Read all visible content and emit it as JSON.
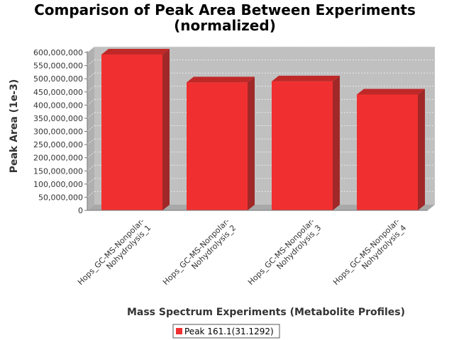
{
  "chart_data": {
    "type": "bar",
    "title": "Comparison of Peak Area Between Experiments",
    "subtitle": "(normalized)",
    "xlabel": "Mass Spectrum Experiments (Metabolite Profiles)",
    "ylabel": "Peak Area (1e-3)",
    "categories": [
      "Hops_GC-MS-Nonpolar-Nohydrolysis_1",
      "Hops_GC-MS-Nonpolar-Nohydrolysis_2",
      "Hops_GC-MS-Nonpolar-Nohydrolysis_3",
      "Hops_GC-MS-Nonpolar-Nohydrolysis_4"
    ],
    "category_lines": [
      [
        "Hops_GC-MS-Nonpolar-",
        "Nohydrolysis_1"
      ],
      [
        "Hops_GC-MS-Nonpolar-",
        "Nohydrolysis_2"
      ],
      [
        "Hops_GC-MS-Nonpolar-",
        "Nohydrolysis_3"
      ],
      [
        "Hops_GC-MS-Nonpolar-",
        "Nohydrolysis_4"
      ]
    ],
    "series": [
      {
        "name": "Peak 161.1(31.1292)",
        "color": "#f03030",
        "values": [
          592000000,
          486000000,
          490000000,
          440000000
        ]
      }
    ],
    "ylim": [
      0,
      600000000
    ],
    "yticks": [
      0,
      50000000,
      100000000,
      150000000,
      200000000,
      250000000,
      300000000,
      350000000,
      400000000,
      450000000,
      500000000,
      550000000,
      600000000
    ],
    "ytick_labels": [
      "0",
      "50,000,000",
      "100,000,000",
      "150,000,000",
      "200,000,000",
      "250,000,000",
      "300,000,000",
      "350,000,000",
      "400,000,000",
      "450,000,000",
      "500,000,000",
      "550,000,000",
      "600,000,000"
    ],
    "grid": true,
    "legend_position": "bottom-center",
    "plot_background": "#c0c0c0",
    "style": "3d"
  }
}
